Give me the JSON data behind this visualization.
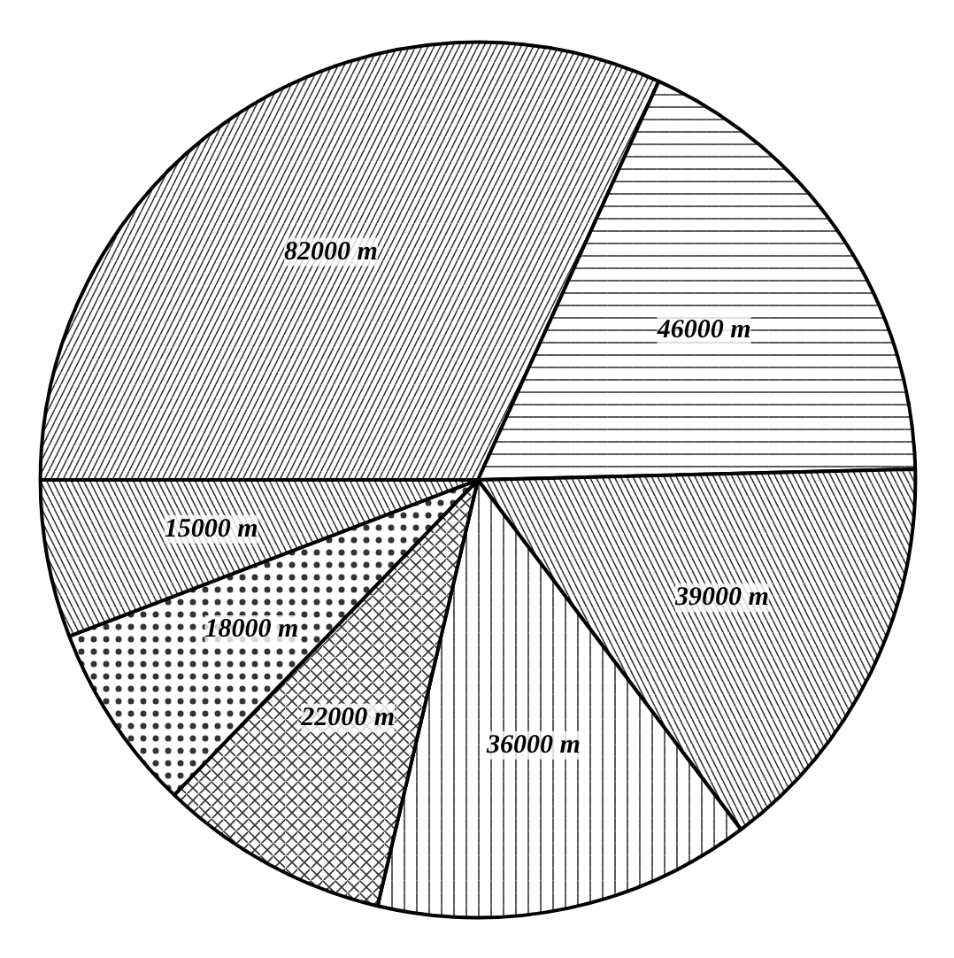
{
  "chart_data": {
    "type": "pie",
    "categories": [
      null,
      null,
      null,
      null,
      null,
      null,
      null
    ],
    "values": [
      82000,
      46000,
      39000,
      36000,
      22000,
      18000,
      15000
    ],
    "value_labels": [
      "82000 т",
      "46000 т",
      "39000 т",
      "36000 т",
      "22000 т",
      "18000 т",
      "15000 т"
    ],
    "colors": [
      "#ffffff",
      "#ffffff",
      "#ffffff",
      "#ffffff",
      "#ffffff",
      "#ffffff",
      "#ffffff"
    ]
  }
}
